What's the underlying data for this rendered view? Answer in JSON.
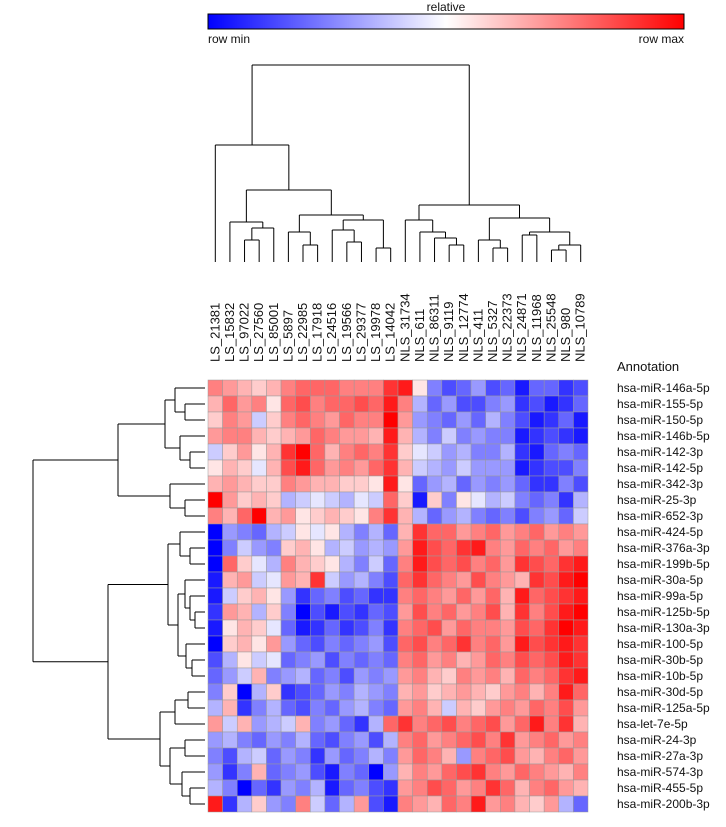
{
  "chart_data": {
    "type": "heatmap",
    "colorbar_title": "relative",
    "colorbar_min_label": "row min",
    "colorbar_max_label": "row max",
    "row_header": "Annotation",
    "zlim": [
      -1,
      1
    ],
    "low_color": "#0000ff",
    "mid_color": "#ffffff",
    "high_color": "#ff0000",
    "x": [
      "LS_21381",
      "LS_15832",
      "LS_97022",
      "LS_27560",
      "LS_85001",
      "LS_5897",
      "LS_22985",
      "LS_17918",
      "LS_24516",
      "LS_19566",
      "LS_29377",
      "LS_19978",
      "LS_14042",
      "NLS_31734",
      "NLS_611",
      "NLS_86311",
      "NLS_9119",
      "NLS_12774",
      "NLS_411",
      "NLS_5327",
      "NLS_22373",
      "NLS_24871",
      "NLS_11968",
      "NLS_25548",
      "NLS_980",
      "NLS_10789"
    ],
    "y": [
      "hsa-miR-146a-5p",
      "hsa-miR-155-5p",
      "hsa-miR-150-5p",
      "hsa-miR-146b-5p",
      "hsa-miR-142-3p",
      "hsa-miR-142-5p",
      "hsa-miR-342-3p",
      "hsa-miR-25-3p",
      "hsa-miR-652-3p",
      "hsa-miR-424-5p",
      "hsa-miR-376a-3p",
      "hsa-miR-199b-5p",
      "hsa-miR-30a-5p",
      "hsa-miR-99a-5p",
      "hsa-miR-125b-5p",
      "hsa-miR-130a-3p",
      "hsa-miR-100-5p",
      "hsa-miR-30b-5p",
      "hsa-miR-10b-5p",
      "hsa-miR-30d-5p",
      "hsa-miR-125a-5p",
      "hsa-let-7e-5p",
      "hsa-miR-24-3p",
      "hsa-miR-27a-3p",
      "hsa-miR-574-3p",
      "hsa-miR-455-5p",
      "hsa-miR-200b-3p"
    ],
    "values": [
      [
        0.5,
        0.4,
        0.3,
        0.2,
        0.3,
        0.5,
        0.6,
        0.6,
        0.6,
        0.5,
        0.5,
        0.5,
        0.8,
        0.9,
        0.1,
        -0.5,
        -0.7,
        -0.6,
        -0.4,
        -0.7,
        -0.6,
        -0.9,
        -0.6,
        -0.6,
        -0.8,
        -0.7
      ],
      [
        0.3,
        0.6,
        0.4,
        0.5,
        0.1,
        0.6,
        0.7,
        0.5,
        0.6,
        0.6,
        0.7,
        0.6,
        0.9,
        0.5,
        -0.3,
        -0.6,
        -0.4,
        -0.7,
        -0.7,
        -0.5,
        -0.4,
        -0.8,
        -0.7,
        -0.9,
        -0.8,
        -0.6
      ],
      [
        0.2,
        0.5,
        0.4,
        -0.2,
        0.2,
        0.5,
        0.6,
        0.5,
        0.4,
        0.6,
        0.5,
        0.5,
        1,
        0.4,
        -0.4,
        -0.5,
        -0.6,
        -0.4,
        -0.6,
        -0.3,
        -0.5,
        -0.7,
        -0.9,
        -0.8,
        -0.6,
        -0.9
      ],
      [
        0.4,
        0.5,
        0.5,
        0.3,
        0.2,
        0.3,
        0.4,
        0.6,
        0.5,
        0.4,
        0.4,
        0.3,
        0.9,
        0.3,
        -0.3,
        -0.5,
        -0.2,
        -0.5,
        -0.4,
        -0.5,
        -0.5,
        -0.9,
        -0.8,
        -0.7,
        -0.8,
        -0.9
      ],
      [
        -0.2,
        0.2,
        0.4,
        0.1,
        0.3,
        0.8,
        1,
        0.6,
        0.3,
        0.5,
        0.6,
        0.5,
        0.8,
        0.2,
        -0.1,
        -0.2,
        -0.4,
        -0.3,
        -0.5,
        -0.5,
        -0.3,
        -0.8,
        -0.9,
        -0.6,
        -0.5,
        -0.6
      ],
      [
        0.1,
        0.3,
        0.2,
        -0.1,
        0.3,
        0.7,
        0.9,
        0.6,
        0.4,
        0.5,
        0.4,
        0.6,
        0.8,
        0.3,
        -0.2,
        -0.3,
        -0.4,
        -0.2,
        -0.4,
        -0.4,
        -0.4,
        -0.9,
        -0.8,
        -0.7,
        -0.7,
        -0.5
      ],
      [
        0.3,
        0.4,
        0.3,
        0.2,
        0.2,
        0.5,
        0.4,
        0.3,
        0.3,
        0.2,
        0.2,
        0.1,
        0.9,
        0.1,
        -0.6,
        -0.4,
        -0.3,
        -0.6,
        -0.4,
        -0.5,
        -0.4,
        -0.6,
        -0.8,
        -0.8,
        -0.5,
        -0.7
      ],
      [
        1,
        0.4,
        0.2,
        0.3,
        0.2,
        -0.3,
        -0.2,
        -0.1,
        -0.2,
        -0.3,
        -0.1,
        -0.2,
        0.6,
        0.2,
        -0.9,
        0.2,
        -0.5,
        0.1,
        -0.1,
        -0.3,
        -0.2,
        -0.5,
        -0.6,
        -0.5,
        -0.8,
        -0.3
      ],
      [
        0.5,
        0.3,
        0.6,
        1,
        0.3,
        0.4,
        0.1,
        0.2,
        0.3,
        0.2,
        0.1,
        0.5,
        0.8,
        0.3,
        -0.3,
        -0.6,
        -0.4,
        -0.3,
        -0.5,
        -0.6,
        -0.5,
        -0.7,
        -0.5,
        -0.4,
        -0.6,
        -0.2
      ],
      [
        -1,
        -0.4,
        -0.5,
        -0.6,
        -0.3,
        -0.2,
        0.1,
        -0.1,
        0.1,
        -0.3,
        -0.5,
        -0.3,
        -0.6,
        0.3,
        0.8,
        0.6,
        0.6,
        0.4,
        0.5,
        0.6,
        0.4,
        0.5,
        0.6,
        0.4,
        0.5,
        0.4
      ],
      [
        -1,
        -0.5,
        -0.2,
        -0.4,
        -0.5,
        0.2,
        0.3,
        0.1,
        -0.3,
        -0.2,
        -0.4,
        -0.3,
        -0.4,
        0.4,
        0.9,
        0.7,
        0.6,
        0.8,
        0.9,
        0.5,
        0.4,
        0.6,
        0.5,
        0.6,
        0.4,
        0.5
      ],
      [
        -1,
        0.6,
        0.2,
        -0.1,
        -0.3,
        0.5,
        0.3,
        0.2,
        0.1,
        -0.3,
        -0.5,
        -0.2,
        -0.6,
        0.5,
        0.9,
        0.7,
        0.6,
        0.7,
        0.5,
        0.6,
        0.4,
        0.8,
        0.7,
        0.6,
        0.8,
        0.9
      ],
      [
        -0.9,
        0.3,
        0.4,
        -0.2,
        -0.1,
        0.4,
        0.3,
        0.8,
        -0.2,
        -0.4,
        -0.3,
        -0.5,
        -0.7,
        0.6,
        0.8,
        0.6,
        0.5,
        0.4,
        0.7,
        0.5,
        0.4,
        0.3,
        0.8,
        0.7,
        0.9,
        1
      ],
      [
        -0.9,
        -0.2,
        0.2,
        0.3,
        0.1,
        -0.4,
        -0.8,
        -0.6,
        -0.5,
        -0.7,
        -0.6,
        -0.8,
        -0.8,
        0.5,
        0.6,
        0.5,
        0.4,
        0.6,
        0.4,
        0.6,
        0.3,
        0.9,
        0.6,
        0.7,
        0.8,
        0.9
      ],
      [
        -0.8,
        0.4,
        0.3,
        -0.3,
        0.2,
        -0.5,
        -1,
        -0.7,
        -0.9,
        -0.7,
        -0.8,
        -0.6,
        -0.7,
        0.4,
        0.7,
        0.5,
        0.6,
        0.4,
        0.5,
        0.7,
        0.3,
        0.8,
        0.5,
        0.7,
        0.9,
        1
      ],
      [
        -0.9,
        0.1,
        0.3,
        0.2,
        -0.1,
        -0.6,
        -0.9,
        -0.8,
        -0.6,
        -0.8,
        -0.7,
        -0.5,
        -0.8,
        0.5,
        0.6,
        0.7,
        0.4,
        0.6,
        0.5,
        0.5,
        0.4,
        0.7,
        0.6,
        0.8,
        1,
        0.9
      ],
      [
        -1,
        0.2,
        0.3,
        0.1,
        0.4,
        -0.4,
        -0.6,
        -0.7,
        -0.5,
        -0.6,
        -0.5,
        -0.4,
        -0.7,
        0.6,
        0.7,
        0.5,
        0.6,
        0.8,
        0.5,
        0.6,
        0.4,
        0.9,
        0.7,
        0.8,
        0.9,
        0.8
      ],
      [
        -0.7,
        -0.3,
        0.1,
        -0.2,
        -0.1,
        -0.6,
        -0.5,
        -0.4,
        -0.7,
        -0.5,
        -0.6,
        -0.5,
        -0.6,
        0.5,
        0.6,
        0.4,
        0.5,
        0.3,
        0.4,
        0.6,
        0.5,
        0.7,
        0.6,
        0.7,
        0.9,
        0.8
      ],
      [
        -0.6,
        -0.4,
        -0.2,
        0.3,
        -0.5,
        -0.4,
        -0.3,
        -0.6,
        -0.5,
        -0.7,
        -0.4,
        -0.5,
        -0.4,
        0.4,
        0.5,
        0.3,
        0.2,
        0.5,
        0.4,
        0.5,
        0.3,
        0.6,
        0.5,
        0.6,
        0.8,
        0.9
      ],
      [
        -0.5,
        0.2,
        -1,
        -0.3,
        0.2,
        -0.8,
        -0.7,
        -0.6,
        -0.4,
        -0.5,
        -0.3,
        -0.4,
        -0.5,
        0.3,
        0.4,
        0.2,
        0.3,
        0.4,
        0.3,
        0.2,
        0.4,
        0.5,
        0.3,
        0.5,
        0.9,
        0.6
      ],
      [
        -0.3,
        0.3,
        -0.8,
        -0.5,
        -0.3,
        -0.6,
        -0.7,
        -0.5,
        -0.6,
        -0.4,
        -0.3,
        -0.5,
        -0.6,
        0.4,
        0.5,
        0.3,
        -0.2,
        0.3,
        0.2,
        0.4,
        0.5,
        0.4,
        0.6,
        0.5,
        0.7,
        0.4
      ],
      [
        0.4,
        -0.2,
        0.3,
        -0.4,
        -0.3,
        -0.2,
        0.3,
        -0.5,
        -0.4,
        -0.6,
        -0.8,
        -0.3,
        0.6,
        0.8,
        0.5,
        0.6,
        0.7,
        0.5,
        0.6,
        0.7,
        0.4,
        0.6,
        0.9,
        0.5,
        0.8,
        0.3
      ],
      [
        -0.4,
        -0.3,
        -0.5,
        -0.6,
        -0.4,
        -0.5,
        -0.3,
        -0.6,
        -0.7,
        -0.5,
        -0.4,
        -0.7,
        -0.3,
        0.5,
        0.6,
        0.4,
        0.5,
        0.6,
        0.7,
        0.5,
        0.8,
        0.4,
        0.5,
        0.6,
        0.4,
        0.5
      ],
      [
        -0.5,
        -0.7,
        -0.3,
        -0.2,
        -0.6,
        -0.4,
        -0.5,
        -0.8,
        -0.4,
        -0.6,
        -0.5,
        -0.3,
        -0.5,
        0.4,
        0.6,
        0.5,
        0.3,
        -0.4,
        0.5,
        0.6,
        0.7,
        0.4,
        0.3,
        0.5,
        0.6,
        0.4
      ],
      [
        -0.4,
        -0.8,
        -0.5,
        0.3,
        -0.6,
        -0.5,
        -0.4,
        -0.7,
        -0.9,
        -0.5,
        -0.6,
        -1,
        -0.4,
        0.3,
        0.5,
        0.4,
        0.6,
        0.7,
        0.8,
        0.5,
        0.4,
        0.6,
        0.5,
        0.4,
        0.3,
        0.5
      ],
      [
        -0.3,
        -0.5,
        -1,
        -0.6,
        -0.8,
        -0.4,
        -0.5,
        -0.3,
        -0.9,
        -0.6,
        -0.5,
        -0.7,
        -0.8,
        0.4,
        0.5,
        0.7,
        0.6,
        0.4,
        0.5,
        0.8,
        0.6,
        0.3,
        0.5,
        0.6,
        0.4,
        0.3
      ],
      [
        0.9,
        -0.8,
        -0.3,
        0.2,
        -0.4,
        -0.5,
        0.5,
        -0.2,
        -0.6,
        -0.3,
        0.4,
        -0.7,
        -0.9,
        0.5,
        0.4,
        0.3,
        0.6,
        0.5,
        0.9,
        0.4,
        0.5,
        0.3,
        0.2,
        0.4,
        -0.3,
        -0.6
      ]
    ]
  }
}
